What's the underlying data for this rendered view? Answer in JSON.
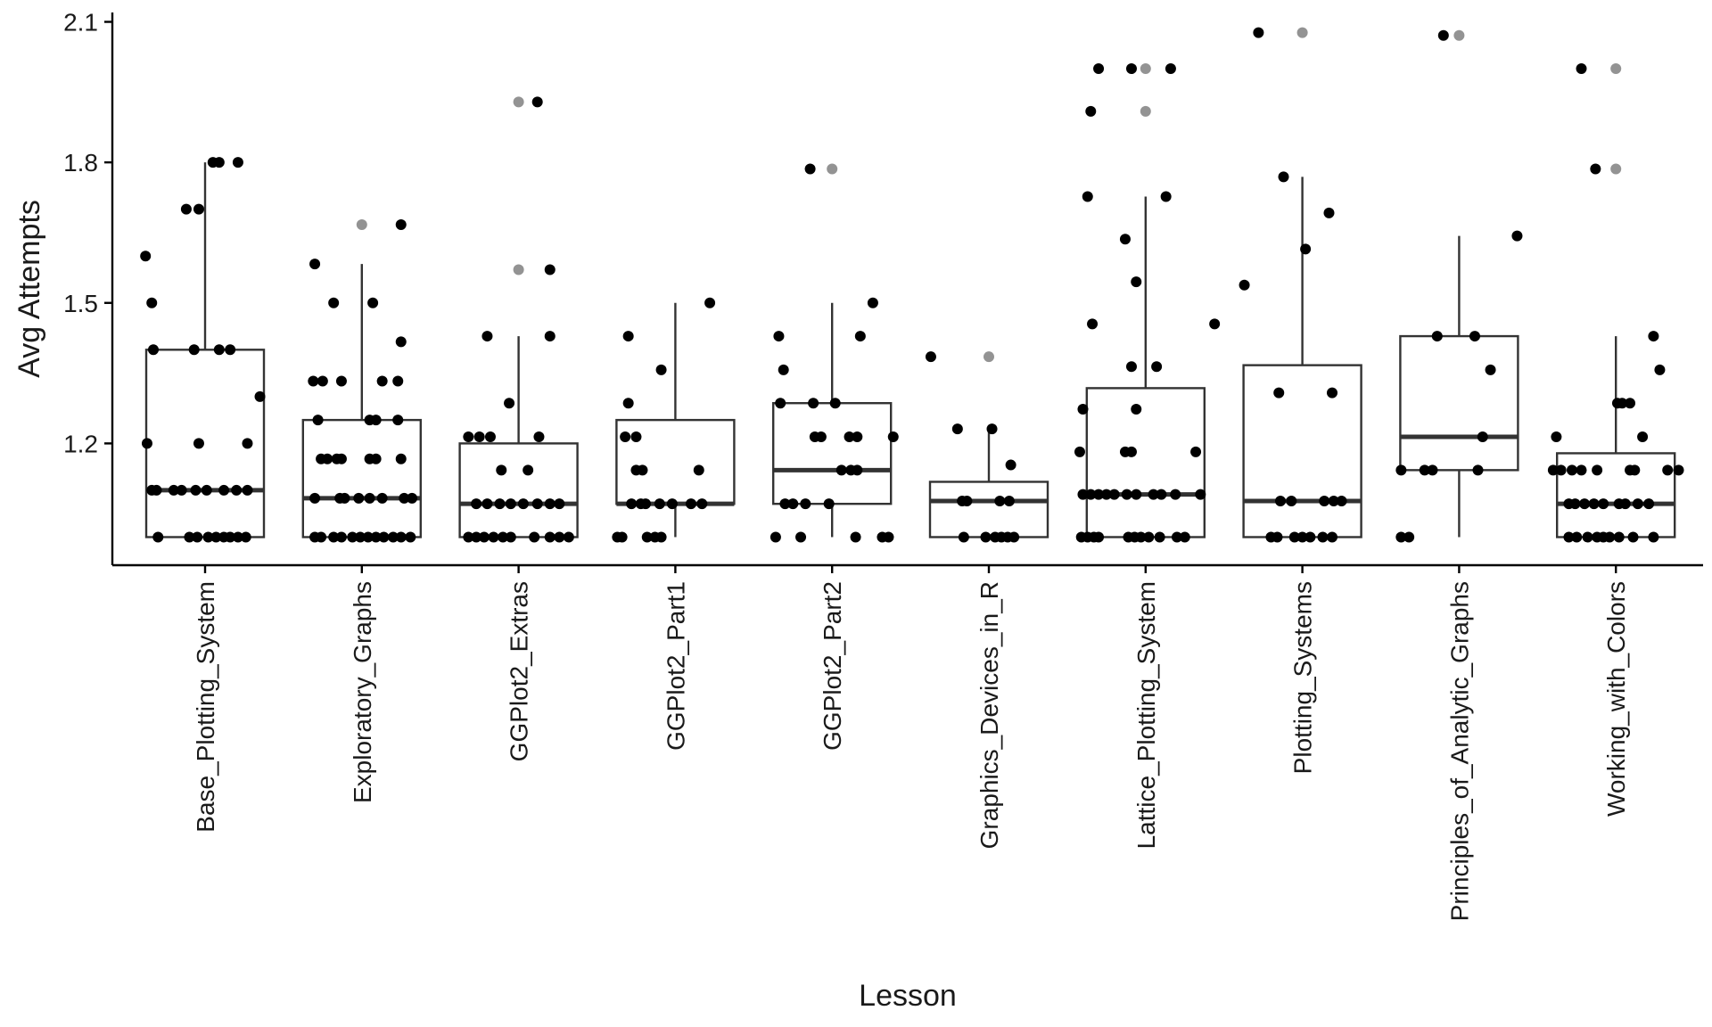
{
  "chart_data": {
    "type": "box",
    "title": "",
    "xlabel": "Lesson",
    "ylabel": "Avg Attempts",
    "ylim": [
      0.94,
      2.12
    ],
    "yticks": [
      1.2,
      1.5,
      1.8,
      2.1
    ],
    "ytick_labels": [
      "1.2",
      "1.5",
      "1.8",
      "2.1"
    ],
    "grid": false,
    "legend": "none",
    "point_color": "#000000",
    "outlier_color": "#808080",
    "box_stroke": "#333333",
    "categories": [
      "Base_Plotting_System",
      "Exploratory_Graphs",
      "GGPlot2_Extras",
      "GGPlot2_Part1",
      "GGPlot2_Part2",
      "Graphics_Devices_in_R",
      "Lattice_Plotting_System",
      "Plotting_Systems",
      "Principles_of_Analytic_Graphs",
      "Working_with_Colors"
    ],
    "boxes": [
      {
        "lower": 1.0,
        "q1": 1.0,
        "median": 1.1,
        "q3": 1.4,
        "upper": 1.8,
        "outliers": []
      },
      {
        "lower": 1.0,
        "q1": 1.0,
        "median": 1.083,
        "q3": 1.25,
        "upper": 1.583,
        "outliers": [
          1.667
        ]
      },
      {
        "lower": 1.0,
        "q1": 1.0,
        "median": 1.071,
        "q3": 1.2,
        "upper": 1.429,
        "outliers": [
          1.571,
          1.929
        ]
      },
      {
        "lower": 1.0,
        "q1": 1.071,
        "median": 1.071,
        "q3": 1.25,
        "upper": 1.5,
        "outliers": []
      },
      {
        "lower": 1.0,
        "q1": 1.071,
        "median": 1.143,
        "q3": 1.286,
        "upper": 1.5,
        "outliers": [
          1.786
        ]
      },
      {
        "lower": 1.0,
        "q1": 1.0,
        "median": 1.077,
        "q3": 1.118,
        "upper": 1.231,
        "outliers": [
          1.385
        ]
      },
      {
        "lower": 1.0,
        "q1": 1.0,
        "median": 1.091,
        "q3": 1.318,
        "upper": 1.727,
        "outliers": [
          1.909,
          2.0
        ]
      },
      {
        "lower": 1.0,
        "q1": 1.0,
        "median": 1.077,
        "q3": 1.367,
        "upper": 1.769,
        "outliers": [
          2.077
        ]
      },
      {
        "lower": 1.0,
        "q1": 1.143,
        "median": 1.214,
        "q3": 1.429,
        "upper": 1.643,
        "outliers": [
          2.071
        ]
      },
      {
        "lower": 1.0,
        "q1": 1.0,
        "median": 1.071,
        "q3": 1.179,
        "upper": 1.429,
        "outliers": [
          1.786,
          2.0
        ]
      }
    ],
    "jitter_points": [
      {
        "category": "Base_Plotting_System",
        "points": [
          [
            -0.38,
            1.6
          ],
          [
            -0.34,
            1.5
          ],
          [
            -0.33,
            1.4
          ],
          [
            -0.37,
            1.2
          ],
          [
            -0.34,
            1.1
          ],
          [
            -0.31,
            1.1
          ],
          [
            -0.2,
            1.1
          ],
          [
            -0.15,
            1.1
          ],
          [
            -0.3,
            1.0
          ],
          [
            -0.1,
            1.0
          ],
          [
            -0.05,
            1.0
          ],
          [
            0.02,
            1.0
          ],
          [
            0.07,
            1.0
          ],
          [
            0.12,
            1.0
          ],
          [
            0.16,
            1.0
          ],
          [
            0.21,
            1.0
          ],
          [
            0.26,
            1.0
          ],
          [
            -0.12,
            1.7
          ],
          [
            -0.04,
            1.7
          ],
          [
            0.05,
            1.8
          ],
          [
            0.09,
            1.8
          ],
          [
            0.21,
            1.8
          ],
          [
            -0.07,
            1.4
          ],
          [
            0.09,
            1.4
          ],
          [
            0.16,
            1.4
          ],
          [
            -0.04,
            1.2
          ],
          [
            0.27,
            1.2
          ],
          [
            0.35,
            1.3
          ],
          [
            -0.06,
            1.1
          ],
          [
            0.01,
            1.1
          ],
          [
            0.12,
            1.1
          ],
          [
            0.2,
            1.1
          ],
          [
            0.27,
            1.1
          ]
        ]
      },
      {
        "category": "Exploratory_Graphs",
        "points": [
          [
            -0.3,
            1.583
          ],
          [
            -0.18,
            1.5
          ],
          [
            0.07,
            1.5
          ],
          [
            0.25,
            1.417
          ],
          [
            -0.31,
            1.333
          ],
          [
            -0.25,
            1.333
          ],
          [
            -0.13,
            1.333
          ],
          [
            0.13,
            1.333
          ],
          [
            0.23,
            1.333
          ],
          [
            -0.28,
            1.25
          ],
          [
            0.05,
            1.25
          ],
          [
            0.09,
            1.25
          ],
          [
            0.23,
            1.25
          ],
          [
            -0.26,
            1.167
          ],
          [
            -0.22,
            1.167
          ],
          [
            -0.16,
            1.167
          ],
          [
            -0.13,
            1.167
          ],
          [
            0.05,
            1.167
          ],
          [
            0.09,
            1.167
          ],
          [
            0.25,
            1.167
          ],
          [
            -0.3,
            1.083
          ],
          [
            -0.14,
            1.083
          ],
          [
            -0.11,
            1.083
          ],
          [
            -0.02,
            1.083
          ],
          [
            0.05,
            1.083
          ],
          [
            0.13,
            1.083
          ],
          [
            0.27,
            1.083
          ],
          [
            0.32,
            1.083
          ],
          [
            -0.3,
            1.0
          ],
          [
            -0.26,
            1.0
          ],
          [
            -0.18,
            1.0
          ],
          [
            -0.13,
            1.0
          ],
          [
            -0.06,
            1.0
          ],
          [
            -0.01,
            1.0
          ],
          [
            0.04,
            1.0
          ],
          [
            0.09,
            1.0
          ],
          [
            0.14,
            1.0
          ],
          [
            0.2,
            1.0
          ],
          [
            0.25,
            1.0
          ],
          [
            0.31,
            1.0
          ],
          [
            0.25,
            1.667
          ]
        ]
      },
      {
        "category": "GGPlot2_Extras",
        "points": [
          [
            0.12,
            1.929
          ],
          [
            0.2,
            1.571
          ],
          [
            -0.32,
            1.214
          ],
          [
            -0.25,
            1.214
          ],
          [
            -0.18,
            1.214
          ],
          [
            -0.06,
            1.286
          ],
          [
            0.13,
            1.214
          ],
          [
            -0.2,
            1.429
          ],
          [
            0.2,
            1.429
          ],
          [
            -0.11,
            1.143
          ],
          [
            0.06,
            1.143
          ],
          [
            -0.27,
            1.071
          ],
          [
            -0.2,
            1.071
          ],
          [
            -0.12,
            1.071
          ],
          [
            -0.05,
            1.071
          ],
          [
            0.03,
            1.071
          ],
          [
            0.12,
            1.071
          ],
          [
            0.2,
            1.071
          ],
          [
            0.26,
            1.071
          ],
          [
            -0.32,
            1.0
          ],
          [
            -0.27,
            1.0
          ],
          [
            -0.22,
            1.0
          ],
          [
            -0.16,
            1.0
          ],
          [
            -0.1,
            1.0
          ],
          [
            -0.05,
            1.0
          ],
          [
            0.1,
            1.0
          ],
          [
            0.2,
            1.0
          ],
          [
            0.26,
            1.0
          ],
          [
            0.32,
            1.0
          ]
        ]
      },
      {
        "category": "GGPlot2_Part1",
        "points": [
          [
            0.22,
            1.5
          ],
          [
            -0.3,
            1.429
          ],
          [
            -0.3,
            1.286
          ],
          [
            -0.32,
            1.214
          ],
          [
            -0.25,
            1.214
          ],
          [
            -0.09,
            1.357
          ],
          [
            -0.25,
            1.143
          ],
          [
            -0.21,
            1.143
          ],
          [
            0.15,
            1.143
          ],
          [
            -0.28,
            1.071
          ],
          [
            -0.22,
            1.071
          ],
          [
            -0.19,
            1.071
          ],
          [
            -0.1,
            1.071
          ],
          [
            -0.02,
            1.071
          ],
          [
            0.1,
            1.071
          ],
          [
            0.17,
            1.071
          ],
          [
            -0.37,
            1.0
          ],
          [
            -0.34,
            1.0
          ],
          [
            -0.18,
            1.0
          ],
          [
            -0.13,
            1.0
          ],
          [
            -0.09,
            1.0
          ]
        ]
      },
      {
        "category": "GGPlot2_Part2",
        "points": [
          [
            -0.14,
            1.786
          ],
          [
            -0.34,
            1.429
          ],
          [
            -0.31,
            1.357
          ],
          [
            -0.33,
            1.286
          ],
          [
            -0.12,
            1.286
          ],
          [
            0.02,
            1.286
          ],
          [
            0.26,
            1.5
          ],
          [
            0.18,
            1.429
          ],
          [
            -0.11,
            1.214
          ],
          [
            -0.07,
            1.214
          ],
          [
            0.11,
            1.214
          ],
          [
            0.16,
            1.214
          ],
          [
            0.39,
            1.214
          ],
          [
            -0.3,
            1.071
          ],
          [
            -0.25,
            1.071
          ],
          [
            -0.17,
            1.071
          ],
          [
            -0.02,
            1.071
          ],
          [
            0.06,
            1.143
          ],
          [
            0.12,
            1.143
          ],
          [
            0.16,
            1.143
          ],
          [
            -0.36,
            1.0
          ],
          [
            -0.2,
            1.0
          ],
          [
            0.15,
            1.0
          ],
          [
            0.32,
            1.0
          ],
          [
            0.36,
            1.0
          ]
        ]
      },
      {
        "category": "Graphics_Devices_in_R",
        "points": [
          [
            -0.37,
            1.385
          ],
          [
            -0.2,
            1.231
          ],
          [
            0.02,
            1.231
          ],
          [
            0.14,
            1.154
          ],
          [
            -0.17,
            1.077
          ],
          [
            -0.14,
            1.077
          ],
          [
            0.07,
            1.077
          ],
          [
            0.13,
            1.077
          ],
          [
            -0.16,
            1.0
          ],
          [
            -0.02,
            1.0
          ],
          [
            0.04,
            1.0
          ],
          [
            0.08,
            1.0
          ],
          [
            0.16,
            1.0
          ],
          [
            0.12,
            1.0
          ]
        ]
      },
      {
        "category": "Lattice_Plotting_System",
        "points": [
          [
            -0.35,
            1.909
          ],
          [
            -0.3,
            2.0
          ],
          [
            -0.09,
            2.0
          ],
          [
            0.16,
            2.0
          ],
          [
            -0.37,
            1.727
          ],
          [
            0.13,
            1.727
          ],
          [
            -0.13,
            1.636
          ],
          [
            -0.06,
            1.545
          ],
          [
            0.44,
            1.455
          ],
          [
            -0.34,
            1.455
          ],
          [
            -0.06,
            1.273
          ],
          [
            0.07,
            1.364
          ],
          [
            -0.09,
            1.364
          ],
          [
            -0.4,
            1.273
          ],
          [
            -0.13,
            1.182
          ],
          [
            -0.09,
            1.182
          ],
          [
            -0.42,
            1.182
          ],
          [
            0.32,
            1.182
          ],
          [
            -0.4,
            1.091
          ],
          [
            -0.35,
            1.091
          ],
          [
            -0.3,
            1.091
          ],
          [
            -0.25,
            1.091
          ],
          [
            -0.2,
            1.091
          ],
          [
            -0.12,
            1.091
          ],
          [
            -0.06,
            1.091
          ],
          [
            0.05,
            1.091
          ],
          [
            0.1,
            1.091
          ],
          [
            0.19,
            1.091
          ],
          [
            0.35,
            1.091
          ],
          [
            -0.41,
            1.0
          ],
          [
            -0.37,
            1.0
          ],
          [
            -0.33,
            1.0
          ],
          [
            -0.3,
            1.0
          ],
          [
            -0.11,
            1.0
          ],
          [
            -0.07,
            1.0
          ],
          [
            -0.03,
            1.0
          ],
          [
            0.02,
            1.0
          ],
          [
            0.09,
            1.0
          ],
          [
            0.2,
            1.0
          ],
          [
            0.25,
            1.0
          ]
        ]
      },
      {
        "category": "Plotting_Systems",
        "points": [
          [
            -0.28,
            2.077
          ],
          [
            -0.12,
            1.769
          ],
          [
            0.17,
            1.692
          ],
          [
            -0.37,
            1.538
          ],
          [
            0.02,
            1.615
          ],
          [
            -0.15,
            1.308
          ],
          [
            0.19,
            1.308
          ],
          [
            -0.14,
            1.077
          ],
          [
            -0.07,
            1.077
          ],
          [
            0.14,
            1.077
          ],
          [
            0.2,
            1.077
          ],
          [
            0.25,
            1.077
          ],
          [
            -0.2,
            1.0
          ],
          [
            -0.16,
            1.0
          ],
          [
            -0.05,
            1.0
          ],
          [
            0.0,
            1.0
          ],
          [
            0.05,
            1.0
          ],
          [
            0.13,
            1.0
          ],
          [
            0.19,
            1.0
          ]
        ]
      },
      {
        "category": "Principles_of_Analytic_Graphs",
        "points": [
          [
            -0.1,
            2.071
          ],
          [
            0.37,
            1.643
          ],
          [
            -0.14,
            1.429
          ],
          [
            0.1,
            1.429
          ],
          [
            0.2,
            1.357
          ],
          [
            0.15,
            1.214
          ],
          [
            -0.22,
            1.143
          ],
          [
            -0.17,
            1.143
          ],
          [
            0.12,
            1.143
          ],
          [
            -0.37,
            1.143
          ],
          [
            -0.37,
            1.0
          ],
          [
            -0.32,
            1.0
          ]
        ]
      },
      {
        "category": "Working_with_Colors",
        "points": [
          [
            -0.22,
            2.0
          ],
          [
            -0.13,
            1.786
          ],
          [
            0.24,
            1.429
          ],
          [
            0.28,
            1.357
          ],
          [
            -0.38,
            1.214
          ],
          [
            0.17,
            1.214
          ],
          [
            0.01,
            1.286
          ],
          [
            0.04,
            1.286
          ],
          [
            0.09,
            1.286
          ],
          [
            -0.4,
            1.143
          ],
          [
            -0.35,
            1.143
          ],
          [
            -0.28,
            1.143
          ],
          [
            -0.22,
            1.143
          ],
          [
            -0.12,
            1.143
          ],
          [
            0.09,
            1.143
          ],
          [
            0.12,
            1.143
          ],
          [
            0.33,
            1.143
          ],
          [
            0.4,
            1.143
          ],
          [
            -0.3,
            1.071
          ],
          [
            -0.26,
            1.071
          ],
          [
            -0.2,
            1.071
          ],
          [
            -0.14,
            1.071
          ],
          [
            -0.08,
            1.071
          ],
          [
            0.02,
            1.071
          ],
          [
            0.06,
            1.071
          ],
          [
            0.14,
            1.071
          ],
          [
            0.21,
            1.071
          ],
          [
            -0.3,
            1.0
          ],
          [
            -0.25,
            1.0
          ],
          [
            -0.18,
            1.0
          ],
          [
            -0.12,
            1.0
          ],
          [
            -0.08,
            1.0
          ],
          [
            -0.04,
            1.0
          ],
          [
            0.02,
            1.0
          ],
          [
            0.11,
            1.0
          ],
          [
            0.24,
            1.0
          ]
        ]
      }
    ]
  }
}
